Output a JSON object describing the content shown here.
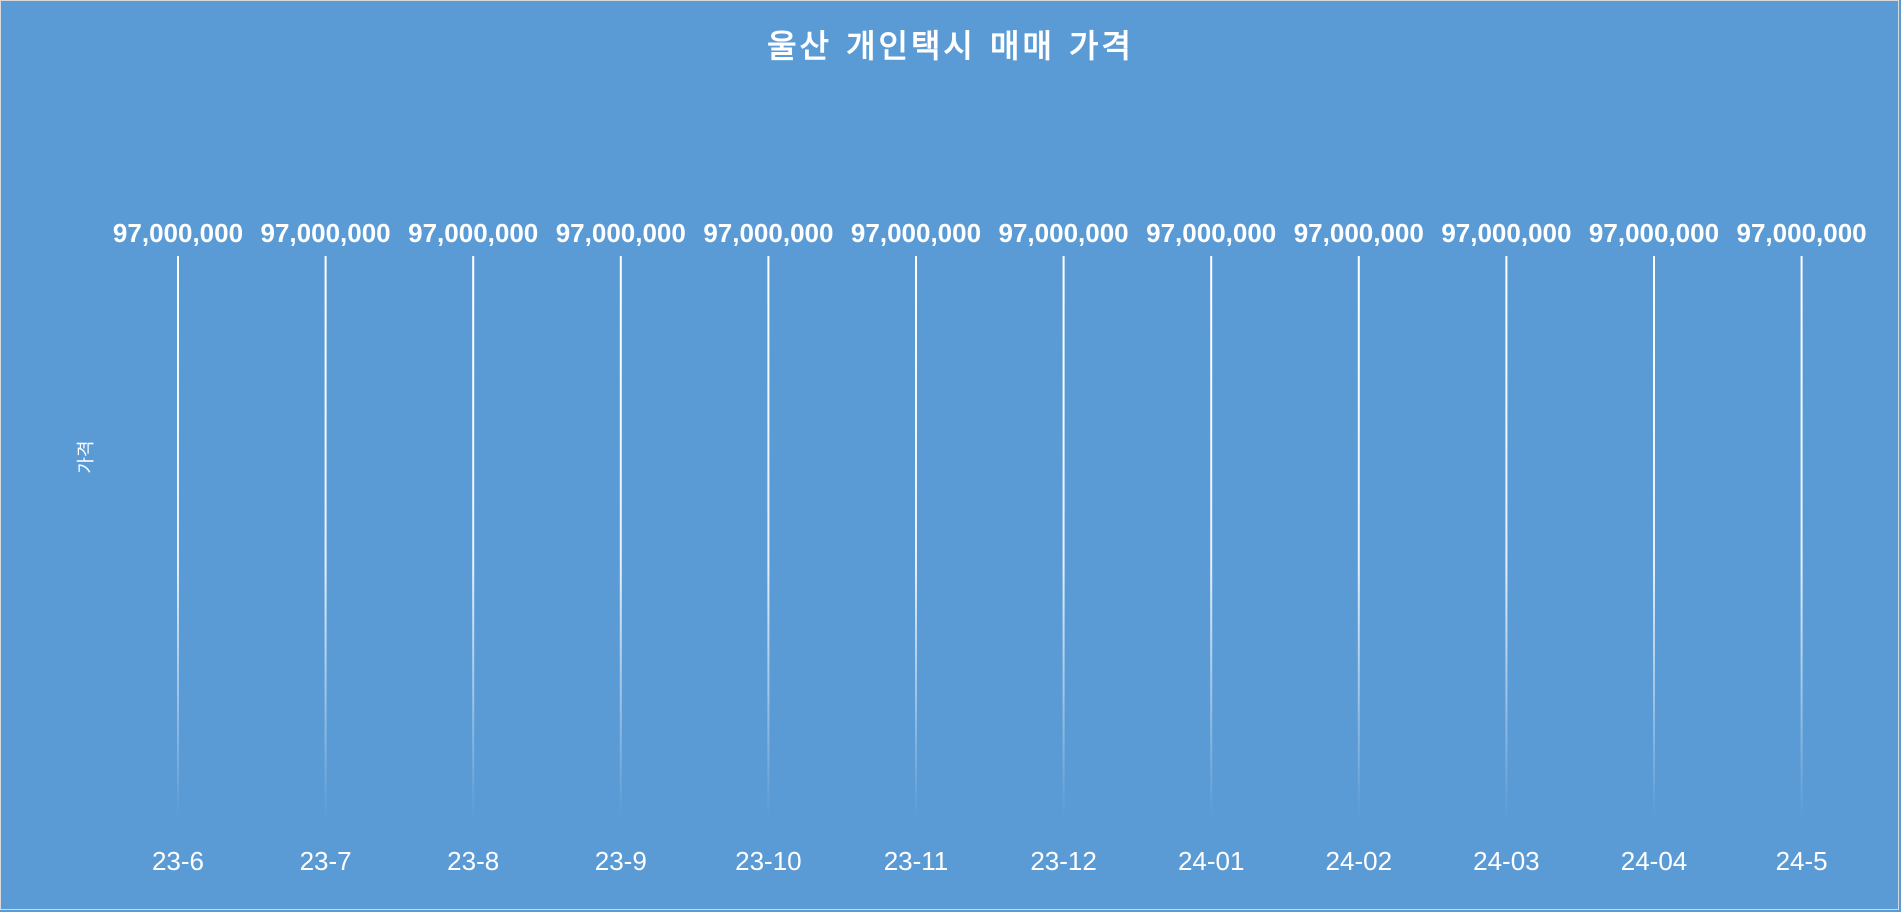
{
  "chart_data": {
    "type": "bar",
    "title": "울산 개인택시 매매 가격",
    "xlabel": "",
    "ylabel": "가격",
    "categories": [
      "23-6",
      "23-7",
      "23-8",
      "23-9",
      "23-10",
      "23-11",
      "23-12",
      "24-01",
      "24-02",
      "24-03",
      "24-04",
      "24-5"
    ],
    "values": [
      97000000,
      97000000,
      97000000,
      97000000,
      97000000,
      97000000,
      97000000,
      97000000,
      97000000,
      97000000,
      97000000,
      97000000
    ],
    "data_labels": [
      "97,000,000",
      "97,000,000",
      "97,000,000",
      "97,000,000",
      "97,000,000",
      "97,000,000",
      "97,000,000",
      "97,000,000",
      "97,000,000",
      "97,000,000",
      "97,000,000",
      "97,000,000"
    ],
    "ylim": [
      0,
      97000000
    ],
    "grid": false,
    "legend": "none",
    "colors": {
      "background": "#5b9bd5",
      "bar": "#ffffff",
      "text": "#ffffff"
    }
  }
}
